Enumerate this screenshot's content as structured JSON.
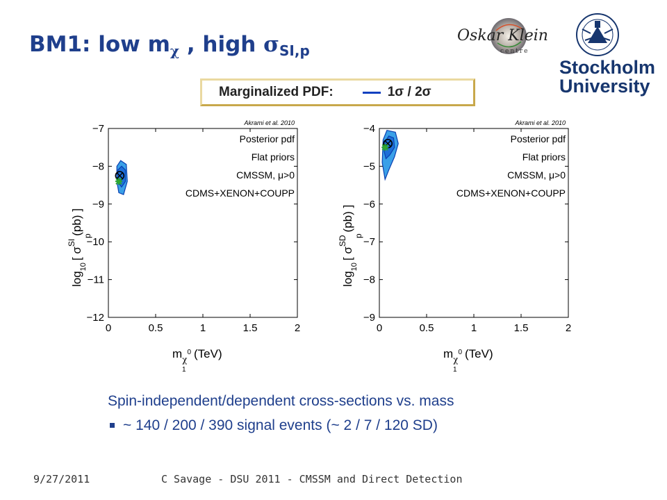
{
  "slide": {
    "title_main": "BM1:  low m",
    "title_chi": "χ",
    "title_mid": " , high ",
    "title_sigma": "σ",
    "title_sub": "SI,p",
    "legend_label": "Marginalized PDF:",
    "legend_value": "1σ / 2σ",
    "logo_oskar_text": "Oskar Klein",
    "logo_oskar_sub": "centre",
    "logo_su_line1": "Stockholm",
    "logo_su_line2": "University",
    "caption": "Spin-independent/dependent cross-sections vs. mass",
    "bullet": "~ 140 / 200 / 390 signal events (~ 2 / 7 / 120 SD)",
    "footer_date": "9/27/2011",
    "footer_text": "C Savage - DSU 2011 - CMSSM and Direct Detection"
  },
  "colors": {
    "title": "#1f3f8c",
    "legend_line": "#1040c0",
    "contour_outer": "#3aa0e8",
    "contour_inner": "#0a3fb0",
    "best_fit": "#2ea82e"
  },
  "chart_data": [
    {
      "type": "scatter",
      "title": "",
      "credit": "Akrami et al. 2010",
      "xlabel_main": "m",
      "xlabel_sub": "χ",
      "xlabel_sup": "0",
      "xlabel_subsub": "1",
      "xlabel_unit": "(TeV)",
      "ylabel_prefix": "log",
      "ylabel_sub10": "10",
      "ylabel_bracket": "[ σ",
      "ylabel_sup": "SI",
      "ylabel_sub": "p",
      "ylabel_unit": "(pb) ]",
      "xlim": [
        0,
        2
      ],
      "ylim": [
        -12,
        -7
      ],
      "xticks": [
        "0",
        "0.5",
        "1",
        "1.5",
        "2"
      ],
      "xtick_values": [
        0,
        0.5,
        1,
        1.5,
        2
      ],
      "yticks": [
        "−12",
        "−11",
        "−10",
        "−9",
        "−8",
        "−7"
      ],
      "ytick_values": [
        -12,
        -11,
        -10,
        -9,
        -8,
        -7
      ],
      "annotations": [
        "Posterior pdf",
        "Flat priors",
        "CMSSM, μ>0",
        "CDMS+XENON+COUPP"
      ],
      "contour_2sigma": [
        [
          0.09,
          -8.0
        ],
        [
          0.13,
          -7.85
        ],
        [
          0.19,
          -7.95
        ],
        [
          0.2,
          -8.4
        ],
        [
          0.16,
          -8.75
        ],
        [
          0.11,
          -8.7
        ],
        [
          0.09,
          -8.4
        ]
      ],
      "contour_1sigma": [
        [
          0.1,
          -8.1
        ],
        [
          0.14,
          -8.0
        ],
        [
          0.18,
          -8.1
        ],
        [
          0.18,
          -8.4
        ],
        [
          0.14,
          -8.55
        ],
        [
          0.11,
          -8.45
        ]
      ],
      "mean_point": [
        0.12,
        -8.25
      ],
      "best_fit": [
        0.11,
        -8.4
      ]
    },
    {
      "type": "scatter",
      "title": "",
      "credit": "Akrami et al. 2010",
      "xlabel_main": "m",
      "xlabel_sub": "χ",
      "xlabel_sup": "0",
      "xlabel_subsub": "1",
      "xlabel_unit": "(TeV)",
      "ylabel_prefix": "log",
      "ylabel_sub10": "10",
      "ylabel_bracket": "[ σ",
      "ylabel_sup": "SD",
      "ylabel_sub": "p",
      "ylabel_unit": "(pb) ]",
      "xlim": [
        0,
        2
      ],
      "ylim": [
        -9,
        -4
      ],
      "xticks": [
        "0",
        "0.5",
        "1",
        "1.5",
        "2"
      ],
      "xtick_values": [
        0,
        0.5,
        1,
        1.5,
        2
      ],
      "yticks": [
        "−9",
        "−8",
        "−7",
        "−6",
        "−5",
        "−4"
      ],
      "ytick_values": [
        -9,
        -8,
        -7,
        -6,
        -5,
        -4
      ],
      "annotations": [
        "Posterior pdf",
        "Flat priors",
        "CMSSM, μ>0",
        "CDMS+XENON+COUPP"
      ],
      "contour_2sigma": [
        [
          0.04,
          -4.3
        ],
        [
          0.08,
          -4.05
        ],
        [
          0.17,
          -4.1
        ],
        [
          0.2,
          -4.4
        ],
        [
          0.16,
          -4.75
        ],
        [
          0.1,
          -5.1
        ],
        [
          0.06,
          -5.35
        ],
        [
          0.03,
          -4.9
        ]
      ],
      "contour_1sigma": [
        [
          0.06,
          -4.35
        ],
        [
          0.1,
          -4.2
        ],
        [
          0.15,
          -4.25
        ],
        [
          0.16,
          -4.5
        ],
        [
          0.11,
          -4.7
        ],
        [
          0.07,
          -4.8
        ],
        [
          0.05,
          -4.6
        ]
      ],
      "mean_point": [
        0.09,
        -4.4
      ],
      "best_fit": [
        0.06,
        -4.5
      ]
    }
  ]
}
